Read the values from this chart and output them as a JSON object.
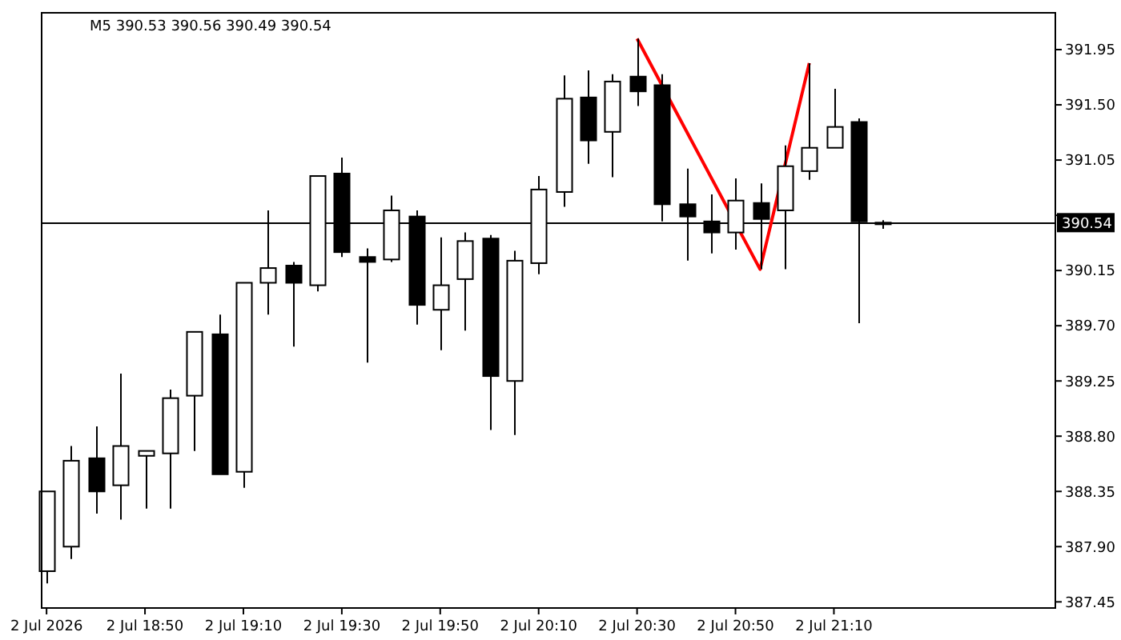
{
  "chart_data": {
    "type": "candlestick",
    "title": "M5  390.53 390.56 390.49 390.54",
    "x": [
      "2026-07-02T18:30",
      "2026-07-02T18:35",
      "2026-07-02T18:40",
      "2026-07-02T18:45",
      "2026-07-02T18:50",
      "2026-07-02T18:55",
      "2026-07-02T19:00",
      "2026-07-02T19:05",
      "2026-07-02T19:10",
      "2026-07-02T19:15",
      "2026-07-02T19:20",
      "2026-07-02T19:25",
      "2026-07-02T19:30",
      "2026-07-02T19:35",
      "2026-07-02T19:40",
      "2026-07-02T19:45",
      "2026-07-02T19:50",
      "2026-07-02T19:55",
      "2026-07-02T20:00",
      "2026-07-02T20:05",
      "2026-07-02T20:10",
      "2026-07-02T20:15",
      "2026-07-02T20:20",
      "2026-07-02T20:25",
      "2026-07-02T20:30",
      "2026-07-02T20:35",
      "2026-07-02T20:40",
      "2026-07-02T20:45",
      "2026-07-02T20:50",
      "2026-07-02T20:55",
      "2026-07-02T21:00",
      "2026-07-02T21:05",
      "2026-07-02T21:10",
      "2026-07-02T21:15",
      "2026-07-02T21:20"
    ],
    "ohlc": [
      [
        387.7,
        388.35,
        387.6,
        388.35
      ],
      [
        387.9,
        388.72,
        387.8,
        388.6
      ],
      [
        388.62,
        388.88,
        388.17,
        388.35
      ],
      [
        388.4,
        389.31,
        388.12,
        388.72
      ],
      [
        388.64,
        388.68,
        388.21,
        388.68
      ],
      [
        388.66,
        389.18,
        388.21,
        389.11
      ],
      [
        389.13,
        389.65,
        388.68,
        389.65
      ],
      [
        389.63,
        389.79,
        388.49,
        388.49
      ],
      [
        388.51,
        390.05,
        388.38,
        390.05
      ],
      [
        390.05,
        390.64,
        389.79,
        390.17
      ],
      [
        390.19,
        390.22,
        389.53,
        390.05
      ],
      [
        390.03,
        390.92,
        389.98,
        390.92
      ],
      [
        390.94,
        391.07,
        390.26,
        390.3
      ],
      [
        390.26,
        390.33,
        389.4,
        390.22
      ],
      [
        390.24,
        390.76,
        390.22,
        390.64
      ],
      [
        390.59,
        390.64,
        389.71,
        389.87
      ],
      [
        389.83,
        390.42,
        389.5,
        390.03
      ],
      [
        390.08,
        390.46,
        389.66,
        390.39
      ],
      [
        390.41,
        390.44,
        388.85,
        389.29
      ],
      [
        389.25,
        390.31,
        388.81,
        390.23
      ],
      [
        390.21,
        390.92,
        390.12,
        390.81
      ],
      [
        390.79,
        391.74,
        390.67,
        391.55
      ],
      [
        391.56,
        391.78,
        391.02,
        391.21
      ],
      [
        391.28,
        391.75,
        390.91,
        391.69
      ],
      [
        391.73,
        392.04,
        391.49,
        391.61
      ],
      [
        391.66,
        391.75,
        390.55,
        390.69
      ],
      [
        390.69,
        390.98,
        390.23,
        390.59
      ],
      [
        390.55,
        390.77,
        390.29,
        390.46
      ],
      [
        390.46,
        390.9,
        390.32,
        390.72
      ],
      [
        390.7,
        390.86,
        390.16,
        390.57
      ],
      [
        390.64,
        391.17,
        390.16,
        391.0
      ],
      [
        390.96,
        391.84,
        390.89,
        391.15
      ],
      [
        391.15,
        391.63,
        391.15,
        391.32
      ],
      [
        391.36,
        391.39,
        389.72,
        390.55
      ],
      [
        390.53,
        390.56,
        390.49,
        390.54
      ]
    ],
    "series": [
      {
        "type": "line",
        "color": "#ff0000",
        "x": [
          "2026-07-02T20:30",
          "2026-07-02T20:55",
          "2026-07-02T21:05"
        ],
        "values": [
          392.04,
          390.16,
          391.84
        ]
      }
    ],
    "xlim": [
      "2026-07-02T18:29",
      "2026-07-02T21:55"
    ],
    "xticks": [
      {
        "value": "2026-07-02T18:30",
        "label": "2 Jul 2026"
      },
      {
        "value": "2026-07-02T18:50",
        "label": "2 Jul 18:50"
      },
      {
        "value": "2026-07-02T19:10",
        "label": "2 Jul 19:10"
      },
      {
        "value": "2026-07-02T19:30",
        "label": "2 Jul 19:30"
      },
      {
        "value": "2026-07-02T19:50",
        "label": "2 Jul 19:50"
      },
      {
        "value": "2026-07-02T20:10",
        "label": "2 Jul 20:10"
      },
      {
        "value": "2026-07-02T20:30",
        "label": "2 Jul 20:30"
      },
      {
        "value": "2026-07-02T20:50",
        "label": "2 Jul 20:50"
      },
      {
        "value": "2026-07-02T21:10",
        "label": "2 Jul 21:10"
      }
    ],
    "ylim": [
      387.4,
      392.25
    ],
    "yticks": [
      {
        "value": 387.45,
        "label": "387.45"
      },
      {
        "value": 387.9,
        "label": "387.90"
      },
      {
        "value": 388.35,
        "label": "388.35"
      },
      {
        "value": 388.8,
        "label": "388.80"
      },
      {
        "value": 389.25,
        "label": "389.25"
      },
      {
        "value": 389.7,
        "label": "389.70"
      },
      {
        "value": 390.15,
        "label": "390.15"
      },
      {
        "value": 390.6,
        "label": null
      },
      {
        "value": 391.05,
        "label": "391.05"
      },
      {
        "value": 391.5,
        "label": "391.50"
      },
      {
        "value": 391.95,
        "label": "391.95"
      }
    ],
    "ref_lines": [
      {
        "axis": "y",
        "value": 390.54,
        "label": "390.54",
        "color": "#000000"
      }
    ],
    "marker": "none"
  }
}
